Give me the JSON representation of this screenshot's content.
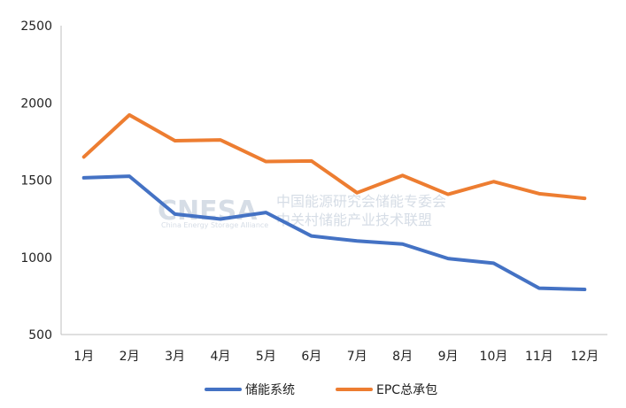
{
  "chart_data": {
    "type": "line",
    "title": "",
    "xlabel": "",
    "ylabel": "",
    "categories": [
      "1月",
      "2月",
      "3月",
      "4月",
      "5月",
      "6月",
      "7月",
      "8月",
      "9月",
      "10月",
      "11月",
      "12月"
    ],
    "ylim": [
      500,
      2500
    ],
    "yticks": [
      500,
      1000,
      1500,
      2000,
      2500
    ],
    "grid": false,
    "legend_position": "bottom",
    "series": [
      {
        "name": "储能系统",
        "color": "#4472C4",
        "values": [
          1515,
          1525,
          1280,
          1248,
          1290,
          1138,
          1106,
          1086,
          992,
          962,
          800,
          792
        ]
      },
      {
        "name": "EPC总承包",
        "color": "#ED7D31",
        "values": [
          1650,
          1922,
          1755,
          1760,
          1620,
          1624,
          1418,
          1530,
          1408,
          1490,
          1412,
          1382
        ]
      }
    ]
  },
  "watermark": {
    "brand": "CNESA",
    "cn_line1": "中国能源研究会储能专委会",
    "cn_line2": "中关村储能产业技术联盟",
    "en_line": "China Energy Storage Alliance"
  }
}
